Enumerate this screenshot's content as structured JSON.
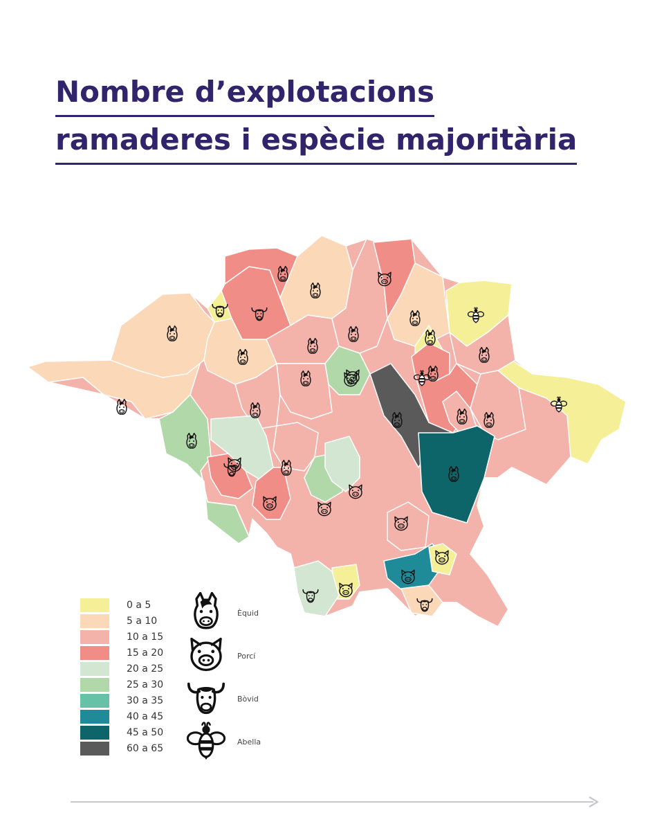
{
  "title": {
    "line1": "Nombre d’explotacions",
    "line2": "ramaderes i espècie majoritària"
  },
  "legend": {
    "bins": [
      {
        "label": "0 a 5",
        "color": "#f5ef98"
      },
      {
        "label": "5 a 10",
        "color": "#fbd8b8"
      },
      {
        "label": "10 a 15",
        "color": "#f4b3aa"
      },
      {
        "label": "15 a 20",
        "color": "#ef8d86"
      },
      {
        "label": "20 a 25",
        "color": "#d3e6d1"
      },
      {
        "label": "25 a 30",
        "color": "#b1d8a8"
      },
      {
        "label": "30 a 35",
        "color": "#66c1a6"
      },
      {
        "label": "40 a 45",
        "color": "#1f8a98"
      },
      {
        "label": "45 a 50",
        "color": "#0d6469"
      },
      {
        "label": "60 a 65",
        "color": "#5a5a5a"
      }
    ]
  },
  "species": [
    {
      "icon": "horse-icon",
      "label": "Èquid"
    },
    {
      "icon": "pig-icon",
      "label": "Porcí"
    },
    {
      "icon": "bull-icon",
      "label": "Bòvid"
    },
    {
      "icon": "bee-icon",
      "label": "Abella"
    }
  ],
  "map": {
    "regions": [
      {
        "bin": 1,
        "icon": "horse-icon"
      },
      {
        "bin": 1,
        "icon": "horse-icon"
      },
      {
        "bin": 3,
        "icon": "bull-icon"
      },
      {
        "bin": 3,
        "icon": "horse-icon"
      },
      {
        "bin": 1,
        "icon": "horse-icon"
      },
      {
        "bin": 1,
        "icon": "horse-icon"
      },
      {
        "bin": 0,
        "icon": "bull-icon"
      },
      {
        "bin": 2,
        "icon": "horse-icon"
      },
      {
        "bin": 0,
        "icon": "bee-icon"
      },
      {
        "bin": 2,
        "icon": "horse-icon"
      },
      {
        "bin": 0,
        "icon": "bee-icon"
      },
      {
        "bin": 3,
        "icon": "pig-icon"
      },
      {
        "bin": 1,
        "icon": "horse-icon"
      },
      {
        "bin": 2,
        "icon": "horse-icon"
      },
      {
        "bin": 0,
        "icon": "horse-icon"
      },
      {
        "bin": 5,
        "icon": "pig-icon"
      },
      {
        "bin": 5,
        "icon": "pig-icon"
      },
      {
        "bin": 9,
        "icon": "horse-icon"
      },
      {
        "bin": 3,
        "icon": "bee-icon"
      },
      {
        "bin": 3,
        "icon": "horse-icon"
      },
      {
        "bin": 2,
        "icon": "horse-icon"
      },
      {
        "bin": 2,
        "icon": "horse-icon"
      },
      {
        "bin": 2,
        "icon": "horse-icon"
      },
      {
        "bin": 2,
        "icon": "horse-icon"
      },
      {
        "bin": 5,
        "icon": "horse-icon"
      },
      {
        "bin": 4,
        "icon": "pig-icon"
      },
      {
        "bin": 3,
        "icon": "bull-icon"
      },
      {
        "bin": 8,
        "icon": "horse-icon"
      },
      {
        "bin": 2,
        "icon": "horse-icon"
      },
      {
        "bin": 3,
        "icon": "pig-icon"
      },
      {
        "bin": 5,
        "icon": "pig-icon"
      },
      {
        "bin": 4,
        "icon": "pig-icon"
      },
      {
        "bin": 2,
        "icon": "pig-icon"
      },
      {
        "bin": 7,
        "icon": "pig-icon"
      },
      {
        "bin": 1,
        "icon": "bull-icon"
      },
      {
        "bin": 0,
        "icon": "pig-icon"
      },
      {
        "bin": 4,
        "icon": "bull-icon"
      },
      {
        "bin": 0,
        "icon": "pig-icon"
      }
    ]
  }
}
